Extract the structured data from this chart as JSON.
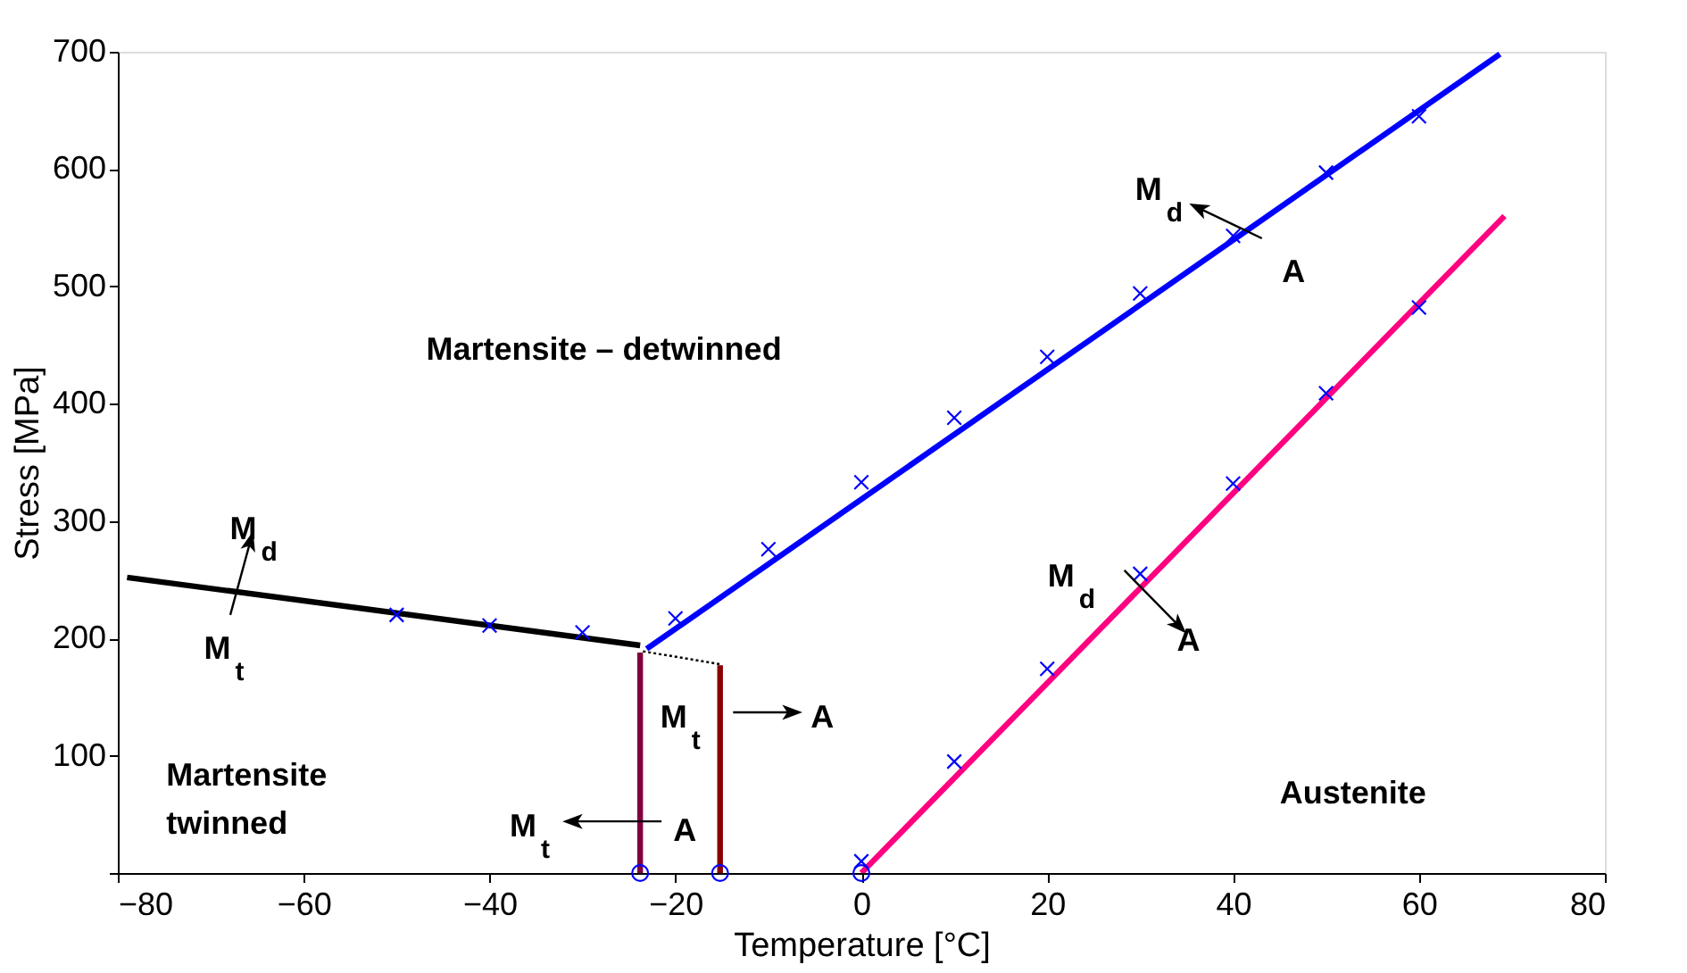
{
  "chart_data": {
    "type": "line",
    "xlabel": "Temperature [°C]",
    "ylabel": "Stress [MPa]",
    "xlim": [
      -80,
      80
    ],
    "xticks": [
      -80,
      -60,
      -40,
      -20,
      0,
      20,
      40,
      60,
      80
    ],
    "ylim": [
      0,
      700
    ],
    "yticks": [
      {
        "value": 0,
        "label": null
      },
      100,
      200,
      300,
      400,
      500,
      600,
      700
    ],
    "grid": false,
    "series": [
      {
        "color": "#000000",
        "line_style": "solid",
        "x": [
          -79,
          -23.8
        ],
        "values": [
          252,
          194
        ]
      },
      {
        "color": "#0000ff",
        "line_style": "solid",
        "x": [
          -23.1,
          68.7
        ],
        "values": [
          191,
          698
        ]
      },
      {
        "color": "#ff0080",
        "line_style": "solid",
        "x": [
          0,
          69.2
        ],
        "values": [
          0,
          560
        ]
      },
      {
        "color": "#800040",
        "line_style": "solid",
        "x": [
          -23.8,
          -23.8
        ],
        "values": [
          0,
          188
        ]
      },
      {
        "color": "#8b0000",
        "line_style": "solid",
        "x": [
          -15.2,
          -15.2
        ],
        "values": [
          0,
          177
        ]
      },
      {
        "color": "#000000",
        "line_style": "dotted",
        "x": [
          -23.5,
          -15.2
        ],
        "values": [
          189,
          178
        ]
      },
      {
        "type": "scatter",
        "marker": "cross",
        "color": "#0000ff",
        "x": [
          -50,
          -40,
          -30,
          -20,
          -10,
          0,
          10,
          20,
          30,
          40,
          50,
          60,
          0,
          10,
          20,
          30,
          40,
          50,
          60
        ],
        "values": [
          220,
          211,
          205,
          217,
          276,
          333,
          388,
          440,
          494,
          543,
          597,
          645,
          10,
          95,
          174,
          255,
          332,
          409,
          482
        ]
      },
      {
        "type": "scatter",
        "marker": "circle",
        "color": "#0000ff",
        "x": [
          -23.8,
          -15.2,
          0
        ],
        "values": [
          0,
          0,
          0
        ]
      }
    ],
    "annotations": [
      "Martensite – detwinned",
      "Martensite",
      "twinned",
      "Austenite",
      "M$_{d}$",
      "M$_{t}$",
      "M$_{t}$",
      "A",
      "M$_{t}$",
      "A",
      "M$_{d}$",
      "A",
      "M$_{d}$",
      "A"
    ]
  }
}
